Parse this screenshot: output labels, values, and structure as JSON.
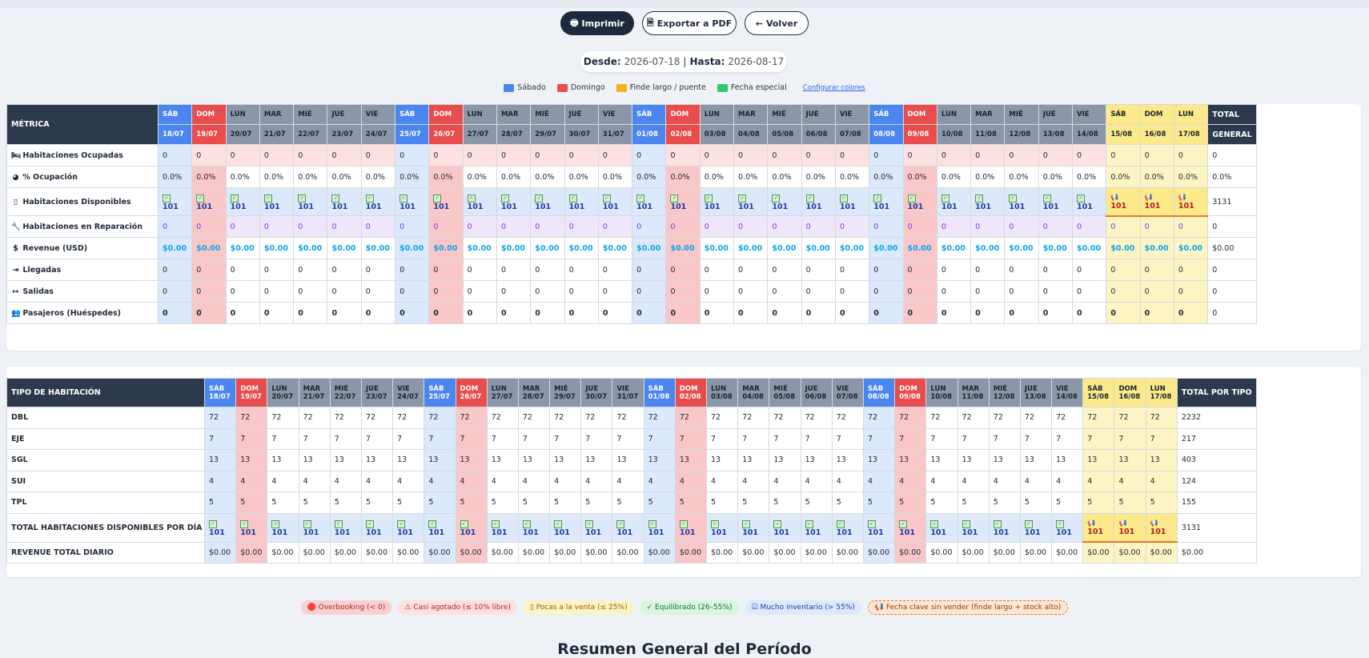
{
  "toolbar": {
    "print": "Imprimir",
    "pdf": "Exportar a PDF",
    "back": "Volver"
  },
  "range": {
    "from_label": "Desde:",
    "from": "2026-07-18",
    "sep": "|",
    "to_label": "Hasta:",
    "to": "2026-08-17"
  },
  "legend": {
    "items": [
      {
        "label": "Sábado",
        "color": "#4b86f0"
      },
      {
        "label": "Domingo",
        "color": "#e84c4c"
      },
      {
        "label": "Finde largo / puente",
        "color": "#f2b21b"
      },
      {
        "label": "Fecha especial",
        "color": "#34c46a"
      }
    ],
    "configure": "Configurar colores"
  },
  "days": [
    {
      "dow": "SÁB",
      "date": "18/07",
      "t": "sat"
    },
    {
      "dow": "DOM",
      "date": "19/07",
      "t": "sun"
    },
    {
      "dow": "LUN",
      "date": "20/07",
      "t": ""
    },
    {
      "dow": "MAR",
      "date": "21/07",
      "t": ""
    },
    {
      "dow": "MIÉ",
      "date": "22/07",
      "t": ""
    },
    {
      "dow": "JUE",
      "date": "23/07",
      "t": ""
    },
    {
      "dow": "VIE",
      "date": "24/07",
      "t": ""
    },
    {
      "dow": "SÁB",
      "date": "25/07",
      "t": "sat"
    },
    {
      "dow": "DOM",
      "date": "26/07",
      "t": "sun"
    },
    {
      "dow": "LUN",
      "date": "27/07",
      "t": ""
    },
    {
      "dow": "MAR",
      "date": "28/07",
      "t": ""
    },
    {
      "dow": "MIÉ",
      "date": "29/07",
      "t": ""
    },
    {
      "dow": "JUE",
      "date": "30/07",
      "t": ""
    },
    {
      "dow": "VIE",
      "date": "31/07",
      "t": ""
    },
    {
      "dow": "SÁB",
      "date": "01/08",
      "t": "sat"
    },
    {
      "dow": "DOM",
      "date": "02/08",
      "t": "sun"
    },
    {
      "dow": "LUN",
      "date": "03/08",
      "t": ""
    },
    {
      "dow": "MAR",
      "date": "04/08",
      "t": ""
    },
    {
      "dow": "MIÉ",
      "date": "05/08",
      "t": ""
    },
    {
      "dow": "JUE",
      "date": "06/08",
      "t": ""
    },
    {
      "dow": "VIE",
      "date": "07/08",
      "t": ""
    },
    {
      "dow": "SÁB",
      "date": "08/08",
      "t": "sat"
    },
    {
      "dow": "DOM",
      "date": "09/08",
      "t": "sun"
    },
    {
      "dow": "LUN",
      "date": "10/08",
      "t": ""
    },
    {
      "dow": "MAR",
      "date": "11/08",
      "t": ""
    },
    {
      "dow": "MIÉ",
      "date": "12/08",
      "t": ""
    },
    {
      "dow": "JUE",
      "date": "13/08",
      "t": ""
    },
    {
      "dow": "VIE",
      "date": "14/08",
      "t": ""
    },
    {
      "dow": "SÁB",
      "date": "15/08",
      "t": "hol"
    },
    {
      "dow": "DOM",
      "date": "16/08",
      "t": "hol"
    },
    {
      "dow": "LUN",
      "date": "17/08",
      "t": "hol"
    }
  ],
  "metrics_table": {
    "header_label": "MÉTRICA",
    "total_label_1": "TOTAL",
    "total_label_2": "GENERAL",
    "rows": [
      {
        "label": "Habitaciones Ocupadas",
        "icon": "bed-icon",
        "glyph": "🛏",
        "value": "0",
        "total": "0",
        "cls": "r-occ"
      },
      {
        "label": "% Ocupación",
        "icon": "pie-chart-icon",
        "glyph": "◕",
        "value": "0.0%",
        "total": "0.0%",
        "cls": "r-pct"
      },
      {
        "label": "Habitaciones Disponibles",
        "icon": "door-icon",
        "glyph": "▯",
        "value": "101",
        "total": "3131",
        "cls": "r-disp"
      },
      {
        "label": "Habitaciones en Reparación",
        "icon": "wrench-icon",
        "glyph": "🔧",
        "value": "0",
        "total": "0",
        "cls": "r-rep"
      },
      {
        "label": "Revenue (USD)",
        "icon": "dollar-icon",
        "glyph": "$",
        "value": "$0.00",
        "total": "$0.00",
        "cls": "r-rev"
      },
      {
        "label": "Llegadas",
        "icon": "sign-in-icon",
        "glyph": "⇥",
        "value": "0",
        "total": "0",
        "cls": "r-arr"
      },
      {
        "label": "Salidas",
        "icon": "sign-out-icon",
        "glyph": "↦",
        "value": "0",
        "total": "0",
        "cls": "r-dep"
      },
      {
        "label": "Pasajeros (Huéspedes)",
        "icon": "users-icon",
        "glyph": "👥",
        "value": "0",
        "total": "0",
        "cls": "r-pax"
      }
    ]
  },
  "room_table": {
    "header_label": "TIPO DE HABITACIÓN",
    "total_label": "TOTAL POR TIPO",
    "rows": [
      {
        "label": "DBL",
        "value": "72",
        "total": "2232",
        "cls": ""
      },
      {
        "label": "EJE",
        "value": "7",
        "total": "217",
        "cls": ""
      },
      {
        "label": "SGL",
        "value": "13",
        "total": "403",
        "cls": ""
      },
      {
        "label": "SUI",
        "value": "4",
        "total": "124",
        "cls": ""
      },
      {
        "label": "TPL",
        "value": "5",
        "total": "155",
        "cls": ""
      },
      {
        "label": "TOTAL HABITACIONES DISPONIBLES POR DÍA",
        "value": "101",
        "total": "3131",
        "cls": "r-disp"
      },
      {
        "label": "REVENUE TOTAL DIARIO",
        "value": "$0.00",
        "total": "$0.00",
        "cls": ""
      }
    ]
  },
  "status_badges": [
    {
      "label": "🔴 Overbooking (< 0)",
      "bg": "#f9d0d0",
      "color": "#b91c1c"
    },
    {
      "label": "⚠ Casi agotado (≤ 10% libre)",
      "bg": "#fde0e0",
      "color": "#b91c1c"
    },
    {
      "label": "▯ Pocas a la venta (≤ 25%)",
      "bg": "#fdf2c4",
      "color": "#92610a"
    },
    {
      "label": "✓ Equilibrado (26–55%)",
      "bg": "#d9f5de",
      "color": "#1d6b33"
    },
    {
      "label": "☑ Mucho inventario (> 55%)",
      "bg": "#dce8fb",
      "color": "#1d3ca8"
    },
    {
      "label": "📢 Fecha clave sin vender (finde largo + stock alto)",
      "bg": "#fde7d3",
      "color": "#9a3412"
    }
  ],
  "summary_title": "Resumen General del Período"
}
